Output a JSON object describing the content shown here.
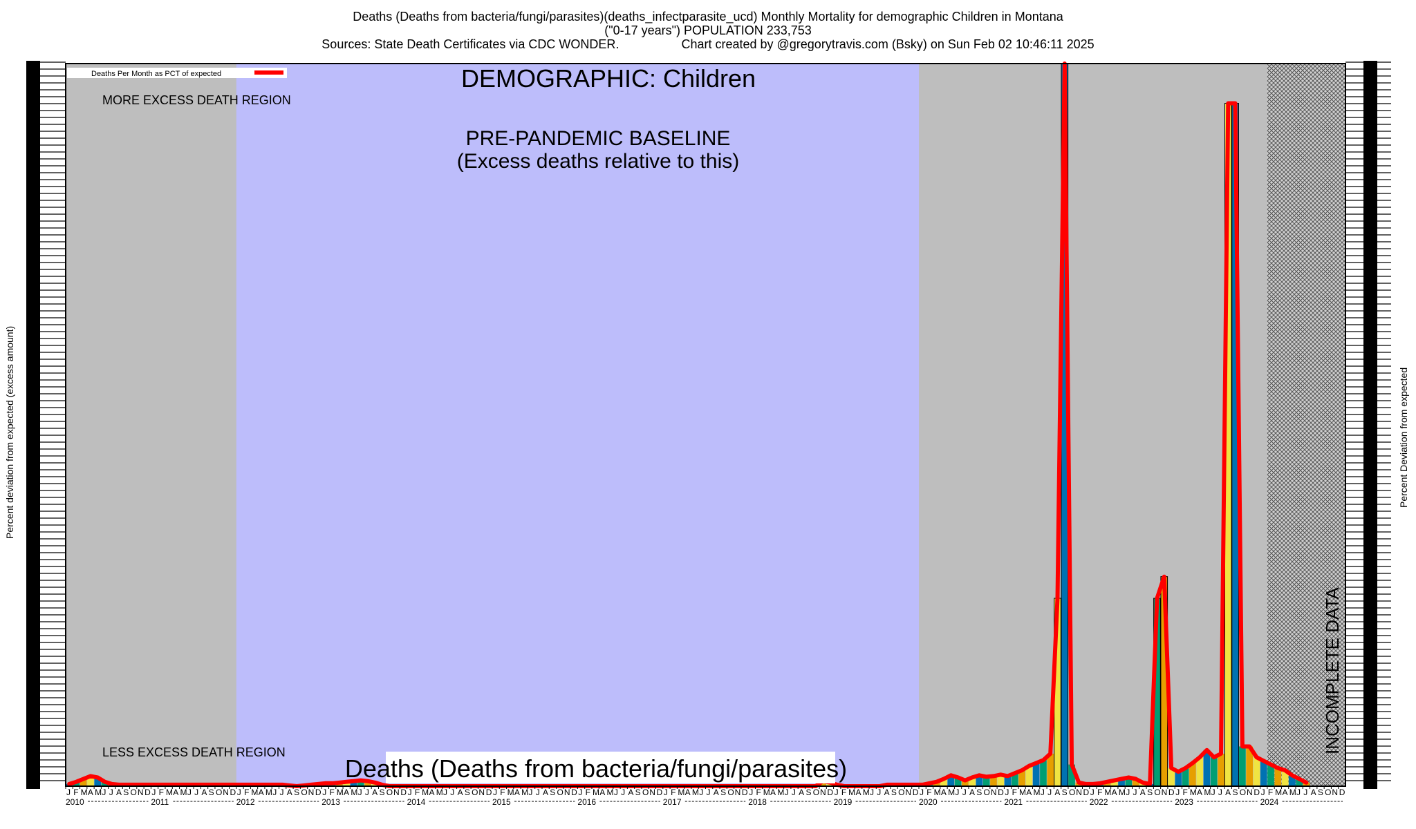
{
  "title": {
    "line1": "Deaths (Deaths from bacteria/fungi/parasites)(deaths_infectparasite_ucd) Monthly Mortality for demographic Children in Montana",
    "line2": "(\"0-17 years\") POPULATION 233,753",
    "line3": "Sources: State Death Certificates via CDC WONDER.                  Chart created by @gregorytravis.com (Bsky) on Sun Feb 02 10:46:11 2025"
  },
  "axes": {
    "left_label": "Percent deviation from expected (excess amount)",
    "right_label": "Percent Deviation from expected"
  },
  "annotations": {
    "demographic": "DEMOGRAPHIC: Children",
    "baseline_line1": "PRE-PANDEMIC BASELINE",
    "baseline_line2": "(Excess deaths relative to this)",
    "more_region": "MORE EXCESS DEATH REGION",
    "less_region": "LESS EXCESS DEATH REGION",
    "series_caption": "Deaths (Deaths from bacteria/fungi/parasites)",
    "incomplete": "INCOMPLETE DATA"
  },
  "legend": {
    "label": "Deaths Per Month as PCT of expected",
    "color": "#ff0000",
    "position": "top-left"
  },
  "colors": {
    "grey_region": "#bebebe",
    "baseline_region": "#bdbdfb",
    "line": "#ff0000",
    "bar_palette": [
      "#0072b2",
      "#009e73",
      "#e69f00",
      "#f0e442"
    ]
  },
  "chart_data": {
    "type": "bar",
    "month_labels": [
      "J",
      "F",
      "M",
      "A",
      "M",
      "J",
      "J",
      "A",
      "S",
      "O",
      "N",
      "D"
    ],
    "years": [
      "2010",
      "2011",
      "2012",
      "2013",
      "2014",
      "2015",
      "2016",
      "2017",
      "2018",
      "2019",
      "2020",
      "2021",
      "2022",
      "2023",
      "2024"
    ],
    "start": "2010-01",
    "end": "2024-07",
    "baseline_period": [
      "2012-01",
      "2019-12"
    ],
    "incomplete_from": "2024-02",
    "grid": false,
    "values": [
      3,
      6,
      10,
      14,
      12,
      6,
      3,
      2,
      2,
      2,
      2,
      2,
      2,
      2,
      2,
      2,
      2,
      2,
      2,
      2,
      2,
      2,
      2,
      2,
      2,
      2,
      2,
      2,
      2,
      2,
      2,
      1,
      0,
      1,
      2,
      3,
      4,
      4,
      5,
      6,
      7,
      8,
      7,
      5,
      2,
      0,
      0,
      0,
      0,
      0,
      0,
      0,
      0,
      0,
      0,
      0,
      0,
      0,
      0,
      0,
      0,
      0,
      0,
      0,
      0,
      0,
      0,
      0,
      0,
      0,
      0,
      0,
      0,
      0,
      0,
      0,
      0,
      0,
      0,
      0,
      0,
      0,
      0,
      0,
      0,
      0,
      0,
      0,
      0,
      0,
      0,
      0,
      0,
      0,
      0,
      0,
      0,
      0,
      0,
      0,
      0,
      0,
      0,
      0,
      0,
      0,
      7,
      5,
      2,
      0,
      0,
      0,
      0,
      0,
      0,
      2,
      2,
      2,
      2,
      2,
      2,
      4,
      6,
      10,
      15,
      12,
      8,
      12,
      15,
      13,
      14,
      16,
      14,
      18,
      22,
      28,
      32,
      36,
      45,
      260,
      1000,
      30,
      5,
      3,
      3,
      4,
      6,
      8,
      10,
      12,
      10,
      5,
      3,
      260,
      290,
      25,
      20,
      25,
      32,
      40,
      50,
      40,
      45,
      945,
      945,
      55,
      55,
      40,
      35,
      30,
      25,
      22,
      15,
      10,
      5
    ]
  }
}
